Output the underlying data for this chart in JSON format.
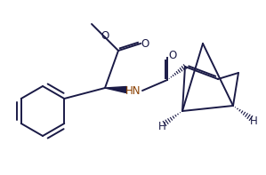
{
  "bg_color": "#ffffff",
  "line_color": "#1a1a46",
  "text_color": "#1a1a46",
  "hn_color": "#8B4000",
  "label_O1": "O",
  "label_O2": "O",
  "label_HN": "HN",
  "label_H1": "H",
  "label_H2": "H",
  "fig_w": 2.99,
  "fig_h": 1.97,
  "dpi": 100,
  "lw": 1.4
}
